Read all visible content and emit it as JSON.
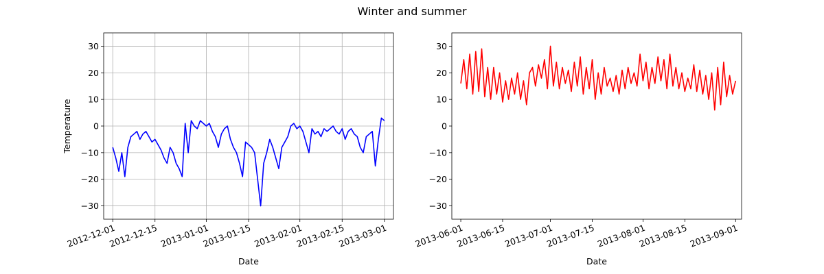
{
  "figure": {
    "suptitle": "Winter and summer"
  },
  "chart_data": [
    {
      "type": "line",
      "name": "winter",
      "xlabel": "Date",
      "ylabel": "Temperature",
      "grid": true,
      "xlim": [
        "2012-11-28",
        "2013-03-04"
      ],
      "ylim": [
        -35,
        35
      ],
      "x_ticks": [
        "2012-12-01",
        "2012-12-15",
        "2013-01-01",
        "2013-01-15",
        "2013-02-01",
        "2013-02-15",
        "2013-03-01"
      ],
      "y_ticks": [
        -30,
        -20,
        -10,
        0,
        10,
        20,
        30
      ],
      "series": [
        {
          "color": "#0000ff",
          "x": [
            "2012-12-01",
            "2012-12-02",
            "2012-12-03",
            "2012-12-04",
            "2012-12-05",
            "2012-12-06",
            "2012-12-07",
            "2012-12-08",
            "2012-12-09",
            "2012-12-10",
            "2012-12-11",
            "2012-12-12",
            "2012-12-13",
            "2012-12-14",
            "2012-12-15",
            "2012-12-16",
            "2012-12-17",
            "2012-12-18",
            "2012-12-19",
            "2012-12-20",
            "2012-12-21",
            "2012-12-22",
            "2012-12-23",
            "2012-12-24",
            "2012-12-25",
            "2012-12-26",
            "2012-12-27",
            "2012-12-28",
            "2012-12-29",
            "2012-12-30",
            "2012-12-31",
            "2013-01-01",
            "2013-01-02",
            "2013-01-03",
            "2013-01-04",
            "2013-01-05",
            "2013-01-06",
            "2013-01-07",
            "2013-01-08",
            "2013-01-09",
            "2013-01-10",
            "2013-01-11",
            "2013-01-12",
            "2013-01-13",
            "2013-01-14",
            "2013-01-15",
            "2013-01-16",
            "2013-01-17",
            "2013-01-18",
            "2013-01-19",
            "2013-01-20",
            "2013-01-21",
            "2013-01-22",
            "2013-01-23",
            "2013-01-24",
            "2013-01-25",
            "2013-01-26",
            "2013-01-27",
            "2013-01-28",
            "2013-01-29",
            "2013-01-30",
            "2013-01-31",
            "2013-02-01",
            "2013-02-02",
            "2013-02-03",
            "2013-02-04",
            "2013-02-05",
            "2013-02-06",
            "2013-02-07",
            "2013-02-08",
            "2013-02-09",
            "2013-02-10",
            "2013-02-11",
            "2013-02-12",
            "2013-02-13",
            "2013-02-14",
            "2013-02-15",
            "2013-02-16",
            "2013-02-17",
            "2013-02-18",
            "2013-02-19",
            "2013-02-20",
            "2013-02-21",
            "2013-02-22",
            "2013-02-23",
            "2013-02-24",
            "2013-02-25",
            "2013-02-26",
            "2013-02-27",
            "2013-02-28",
            "2013-03-01"
          ],
          "y": [
            -8,
            -12,
            -17,
            -10,
            -19,
            -8,
            -4,
            -3,
            -2,
            -5,
            -3,
            -2,
            -4,
            -6,
            -5,
            -7,
            -9,
            -12,
            -14,
            -8,
            -10,
            -14,
            -16,
            -19,
            1,
            -10,
            2,
            0,
            -1,
            2,
            1,
            0,
            1,
            -2,
            -4,
            -8,
            -3,
            -1,
            0,
            -5,
            -8,
            -10,
            -14,
            -19,
            -6,
            -7,
            -8,
            -10,
            -20,
            -30,
            -14,
            -10,
            -5,
            -8,
            -12,
            -16,
            -8,
            -6,
            -4,
            0,
            1,
            -1,
            0,
            -2,
            -6,
            -10,
            -1,
            -3,
            -2,
            -4,
            -1,
            -2,
            -1,
            0,
            -2,
            -3,
            -1,
            -5,
            -2,
            -1,
            -3,
            -4,
            -8,
            -10,
            -4,
            -3,
            -2,
            -15,
            -5,
            3,
            2
          ]
        }
      ]
    },
    {
      "type": "line",
      "name": "summer",
      "xlabel": "Date",
      "ylabel": "",
      "grid": false,
      "xlim": [
        "2013-05-29",
        "2013-09-03"
      ],
      "ylim": [
        -35,
        35
      ],
      "x_ticks": [
        "2013-06-01",
        "2013-06-15",
        "2013-07-01",
        "2013-07-15",
        "2013-08-01",
        "2013-08-15",
        "2013-09-01"
      ],
      "y_ticks": [
        -30,
        -20,
        -10,
        0,
        10,
        20,
        30
      ],
      "series": [
        {
          "color": "#ff0000",
          "x": [
            "2013-06-01",
            "2013-06-02",
            "2013-06-03",
            "2013-06-04",
            "2013-06-05",
            "2013-06-06",
            "2013-06-07",
            "2013-06-08",
            "2013-06-09",
            "2013-06-10",
            "2013-06-11",
            "2013-06-12",
            "2013-06-13",
            "2013-06-14",
            "2013-06-15",
            "2013-06-16",
            "2013-06-17",
            "2013-06-18",
            "2013-06-19",
            "2013-06-20",
            "2013-06-21",
            "2013-06-22",
            "2013-06-23",
            "2013-06-24",
            "2013-06-25",
            "2013-06-26",
            "2013-06-27",
            "2013-06-28",
            "2013-06-29",
            "2013-06-30",
            "2013-07-01",
            "2013-07-02",
            "2013-07-03",
            "2013-07-04",
            "2013-07-05",
            "2013-07-06",
            "2013-07-07",
            "2013-07-08",
            "2013-07-09",
            "2013-07-10",
            "2013-07-11",
            "2013-07-12",
            "2013-07-13",
            "2013-07-14",
            "2013-07-15",
            "2013-07-16",
            "2013-07-17",
            "2013-07-18",
            "2013-07-19",
            "2013-07-20",
            "2013-07-21",
            "2013-07-22",
            "2013-07-23",
            "2013-07-24",
            "2013-07-25",
            "2013-07-26",
            "2013-07-27",
            "2013-07-28",
            "2013-07-29",
            "2013-07-30",
            "2013-07-31",
            "2013-08-01",
            "2013-08-02",
            "2013-08-03",
            "2013-08-04",
            "2013-08-05",
            "2013-08-06",
            "2013-08-07",
            "2013-08-08",
            "2013-08-09",
            "2013-08-10",
            "2013-08-11",
            "2013-08-12",
            "2013-08-13",
            "2013-08-14",
            "2013-08-15",
            "2013-08-16",
            "2013-08-17",
            "2013-08-18",
            "2013-08-19",
            "2013-08-20",
            "2013-08-21",
            "2013-08-22",
            "2013-08-23",
            "2013-08-24",
            "2013-08-25",
            "2013-08-26",
            "2013-08-27",
            "2013-08-28",
            "2013-08-29",
            "2013-08-30",
            "2013-08-31",
            "2013-09-01"
          ],
          "y": [
            16,
            25,
            14,
            27,
            12,
            28,
            13,
            29,
            11,
            22,
            10,
            22,
            12,
            20,
            9,
            17,
            10,
            18,
            12,
            20,
            10,
            17,
            8,
            20,
            22,
            15,
            23,
            18,
            25,
            14,
            30,
            15,
            24,
            14,
            22,
            16,
            21,
            13,
            24,
            15,
            26,
            12,
            22,
            14,
            25,
            10,
            20,
            12,
            22,
            15,
            18,
            13,
            19,
            12,
            21,
            14,
            22,
            16,
            20,
            15,
            27,
            17,
            24,
            14,
            22,
            16,
            26,
            17,
            25,
            14,
            27,
            15,
            22,
            14,
            20,
            13,
            18,
            14,
            23,
            13,
            21,
            12,
            19,
            10,
            20,
            6,
            22,
            8,
            24,
            11,
            19,
            12,
            17
          ]
        }
      ]
    }
  ]
}
